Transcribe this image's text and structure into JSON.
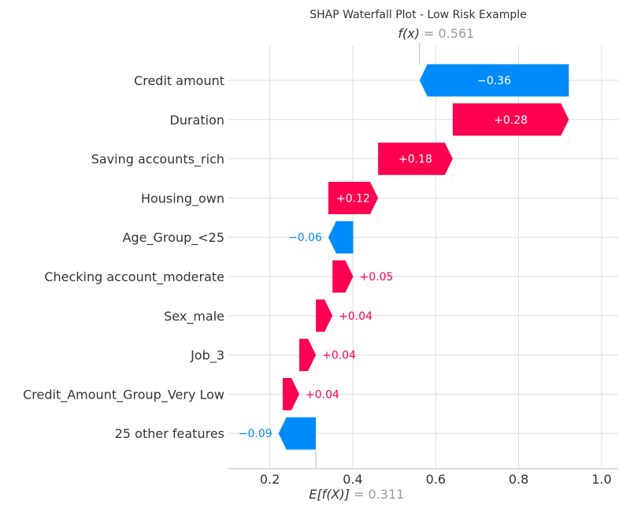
{
  "chart_data": {
    "type": "waterfall",
    "title": "SHAP Waterfall Plot - Low Risk Example",
    "fx": {
      "symbol": "f(x)",
      "value_text": "= 0.561",
      "value": 0.561
    },
    "ex": {
      "symbol": "E[f(X)]",
      "value_text": "= 0.311",
      "value": 0.311
    },
    "xlim": [
      0.1,
      1.04
    ],
    "xticks": [
      {
        "value": 0.2,
        "label": "0.2"
      },
      {
        "value": 0.4,
        "label": "0.4"
      },
      {
        "value": 0.6,
        "label": "0.6"
      },
      {
        "value": 0.8,
        "label": "0.8"
      },
      {
        "value": 1.0,
        "label": "1.0"
      }
    ],
    "grid": true,
    "colors": {
      "positive": "#ff0051",
      "negative": "#008bfb",
      "text": "#333333",
      "muted": "#999999",
      "grid": "#dddddd"
    },
    "features": [
      {
        "name": "Credit amount",
        "start": 0.921,
        "value": -0.36,
        "label": "−0.36"
      },
      {
        "name": "Duration",
        "start": 0.641,
        "value": 0.28,
        "label": "+0.28"
      },
      {
        "name": "Saving accounts_rich",
        "start": 0.461,
        "value": 0.18,
        "label": "+0.18"
      },
      {
        "name": "Housing_own",
        "start": 0.341,
        "value": 0.12,
        "label": "+0.12"
      },
      {
        "name": "Age_Group_<25",
        "start": 0.401,
        "value": -0.06,
        "label": "−0.06"
      },
      {
        "name": "Checking account_moderate",
        "start": 0.351,
        "value": 0.05,
        "label": "+0.05"
      },
      {
        "name": "Sex_male",
        "start": 0.311,
        "value": 0.04,
        "label": "+0.04"
      },
      {
        "name": "Job_3",
        "start": 0.271,
        "value": 0.04,
        "label": "+0.04"
      },
      {
        "name": "Credit_Amount_Group_Very Low",
        "start": 0.231,
        "value": 0.04,
        "label": "+0.04"
      },
      {
        "name": "25 other features",
        "start": 0.311,
        "value": -0.09,
        "label": "−0.09"
      }
    ]
  }
}
